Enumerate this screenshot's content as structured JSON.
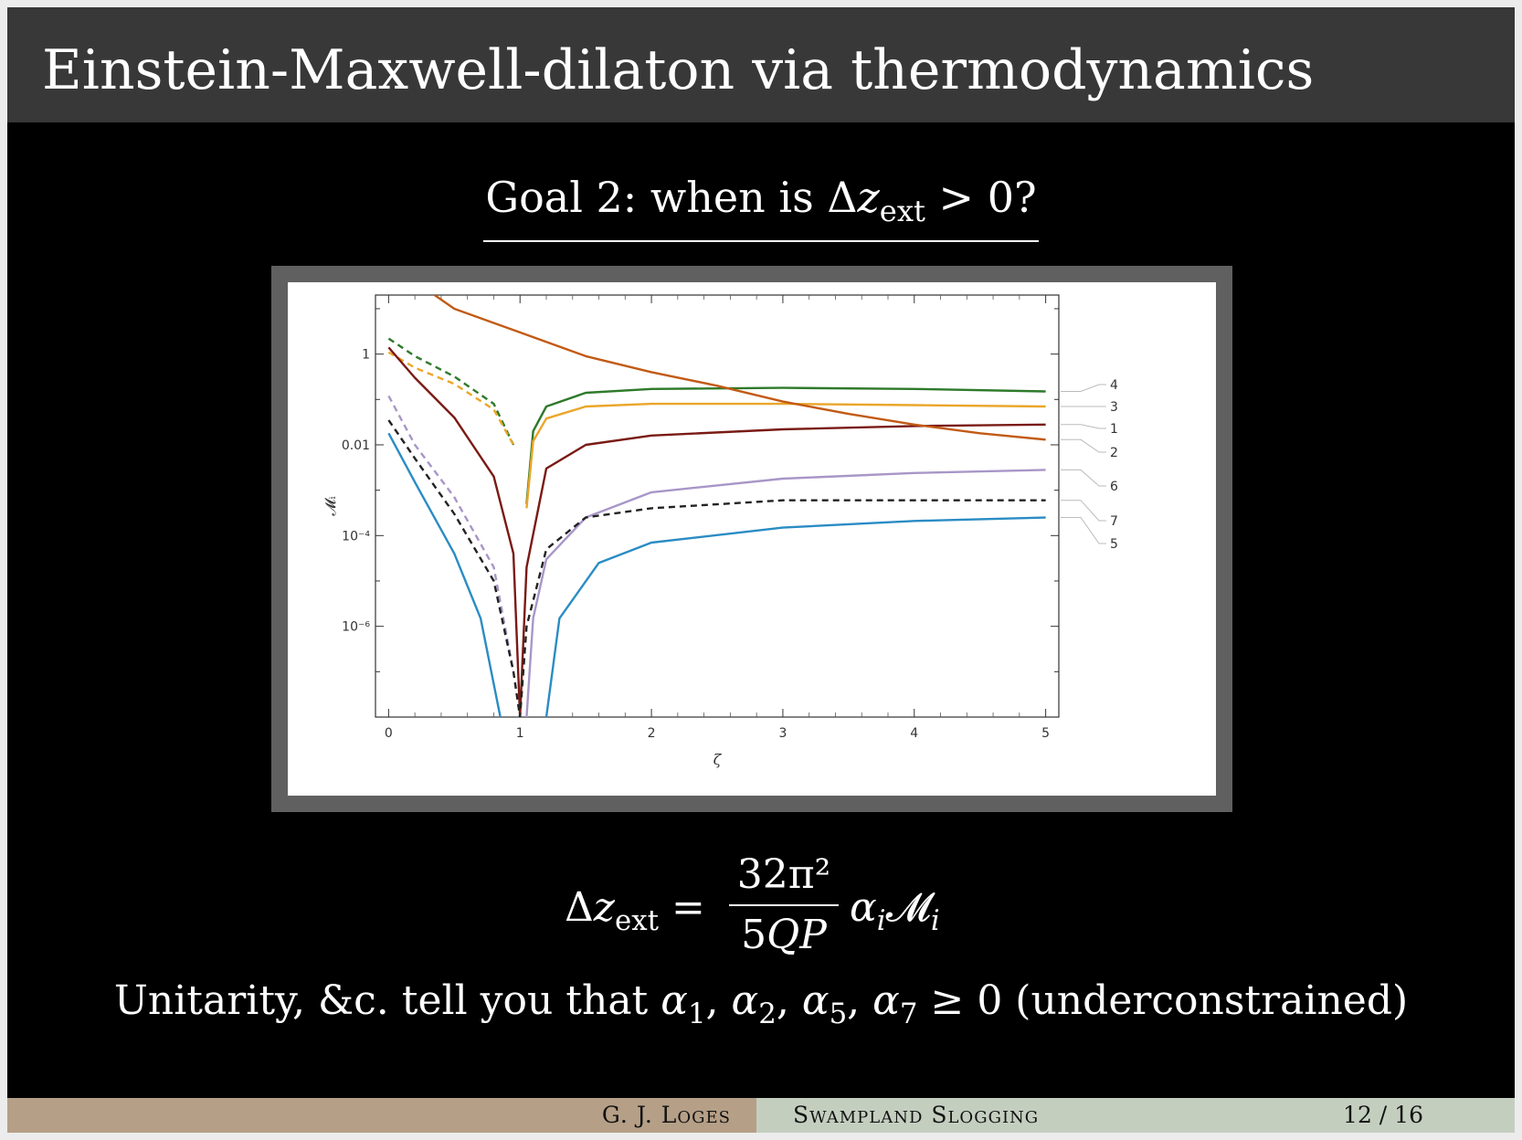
{
  "header": {
    "title": "Einstein-Maxwell-dilaton via thermodynamics"
  },
  "goal": {
    "prefix": "Goal 2:  when is Δ",
    "var": "z",
    "sub": "ext",
    "suffix": " > 0?"
  },
  "equation": {
    "lhs_delta": "Δ",
    "lhs_var": "z",
    "lhs_sub": "ext",
    "equals": " =",
    "numerator": "32π²",
    "denominator_num": "5",
    "denominator_var": "QP",
    "rhs_alpha": "α",
    "rhs_alpha_sub": "i",
    "rhs_m": "𝓜",
    "rhs_m_sub": "i"
  },
  "unitarity": {
    "prefix": "Unitarity, &c. tell you that ",
    "a1": "α",
    "s1": "1",
    "a2": "α",
    "s2": "2",
    "a5": "α",
    "s5": "5",
    "a7": "α",
    "s7": "7",
    "suffix": " ≥ 0 (underconstrained)"
  },
  "footer": {
    "author": "G. J. Loges",
    "talk": "Swampland Slogging",
    "page": "12 / 16"
  },
  "chart_data": {
    "type": "line",
    "xlabel": "ζ",
    "ylabel": "𝓜ᵢ",
    "xlim": [
      -0.1,
      5.1
    ],
    "yscale": "log",
    "ylim": [
      1e-08,
      20
    ],
    "x_ticks": [
      "0",
      "1",
      "2",
      "3",
      "4",
      "5"
    ],
    "y_ticks": [
      {
        "value": 1,
        "label": "1"
      },
      {
        "value": 0.01,
        "label": "0.01"
      },
      {
        "value": 0.0001,
        "label": "10⁻⁴"
      },
      {
        "value": 1e-06,
        "label": "10⁻⁶"
      }
    ],
    "series": [
      {
        "name": "4",
        "color": "#2e7a2a",
        "dashed": [
          [
            0.0,
            2.2
          ],
          [
            0.2,
            0.9
          ],
          [
            0.5,
            0.32
          ],
          [
            0.8,
            0.08
          ],
          [
            0.95,
            0.01
          ]
        ],
        "solid": [
          [
            1.05,
            0.0005
          ],
          [
            1.1,
            0.02
          ],
          [
            1.2,
            0.07
          ],
          [
            1.5,
            0.14
          ],
          [
            2,
            0.17
          ],
          [
            3,
            0.18
          ],
          [
            4,
            0.17
          ],
          [
            5,
            0.15
          ]
        ]
      },
      {
        "name": "3",
        "color": "#eaa62a",
        "dashed": [
          [
            0.0,
            1.1
          ],
          [
            0.2,
            0.5
          ],
          [
            0.5,
            0.22
          ],
          [
            0.8,
            0.06
          ],
          [
            0.95,
            0.01
          ]
        ],
        "solid": [
          [
            1.05,
            0.0004
          ],
          [
            1.1,
            0.012
          ],
          [
            1.2,
            0.038
          ],
          [
            1.5,
            0.07
          ],
          [
            2,
            0.08
          ],
          [
            3,
            0.08
          ],
          [
            4,
            0.075
          ],
          [
            5,
            0.07
          ]
        ]
      },
      {
        "name": "1",
        "color": "#7a1a14",
        "solid": [
          [
            0.0,
            1.4
          ],
          [
            0.2,
            0.3
          ],
          [
            0.5,
            0.04
          ],
          [
            0.8,
            0.002
          ],
          [
            0.95,
            4e-05
          ],
          [
            1.0,
            1e-08
          ],
          [
            1.05,
            2e-05
          ],
          [
            1.2,
            0.003
          ],
          [
            1.5,
            0.01
          ],
          [
            2,
            0.016
          ],
          [
            3,
            0.022
          ],
          [
            4,
            0.026
          ],
          [
            5,
            0.028
          ]
        ]
      },
      {
        "name": "2",
        "color": "#c25a14",
        "solid": [
          [
            0.35,
            20
          ],
          [
            0.5,
            10
          ],
          [
            1,
            3
          ],
          [
            1.5,
            0.9
          ],
          [
            2,
            0.4
          ],
          [
            2.5,
            0.2
          ],
          [
            3,
            0.09
          ],
          [
            3.5,
            0.048
          ],
          [
            4,
            0.028
          ],
          [
            4.5,
            0.018
          ],
          [
            5,
            0.013
          ]
        ]
      },
      {
        "name": "6",
        "color": "#a896c8",
        "dashed": [
          [
            0.0,
            0.12
          ],
          [
            0.2,
            0.01
          ],
          [
            0.5,
            0.0007
          ],
          [
            0.8,
            2e-05
          ],
          [
            0.95,
            1e-07
          ]
        ],
        "solid": [
          [
            1.05,
            1e-08
          ],
          [
            1.1,
            1.5e-06
          ],
          [
            1.2,
            3e-05
          ],
          [
            1.5,
            0.00025
          ],
          [
            2,
            0.0009
          ],
          [
            3,
            0.0018
          ],
          [
            4,
            0.0024
          ],
          [
            5,
            0.0028
          ]
        ]
      },
      {
        "name": "7",
        "color": "#222222",
        "dashed_all": true,
        "dashed": [
          [
            0.0,
            0.035
          ],
          [
            0.2,
            0.005
          ],
          [
            0.5,
            0.0003
          ],
          [
            0.8,
            1e-05
          ],
          [
            0.95,
            1e-07
          ],
          [
            1.0,
            1e-08
          ],
          [
            1.05,
            1e-06
          ],
          [
            1.2,
            5e-05
          ],
          [
            1.5,
            0.00025
          ],
          [
            2,
            0.0004
          ],
          [
            3,
            0.0006
          ],
          [
            4,
            0.0006
          ],
          [
            5,
            0.0006
          ]
        ]
      },
      {
        "name": "5",
        "color": "#2a8cc4",
        "solid": [
          [
            0.0,
            0.018
          ],
          [
            0.2,
            0.0015
          ],
          [
            0.5,
            4e-05
          ],
          [
            0.7,
            1.5e-06
          ],
          [
            0.85,
            1e-08
          ]
        ],
        "solid2": [
          [
            1.2,
            1e-08
          ],
          [
            1.3,
            1.5e-06
          ],
          [
            1.6,
            2.5e-05
          ],
          [
            2,
            7e-05
          ],
          [
            3,
            0.00015
          ],
          [
            4,
            0.00021
          ],
          [
            5,
            0.00025
          ]
        ]
      }
    ]
  }
}
